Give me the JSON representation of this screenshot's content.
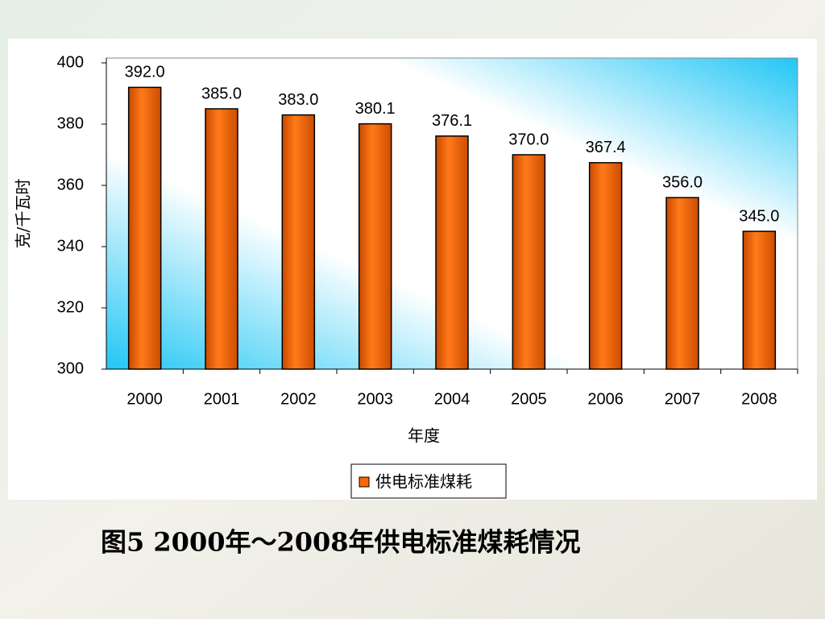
{
  "chart_data": {
    "type": "bar",
    "title": "图5   2000年～2008年供电标准煤耗情况",
    "x_label": "年度",
    "y_label": "克/千瓦时",
    "categories": [
      "2000",
      "2001",
      "2002",
      "2003",
      "2004",
      "2005",
      "2006",
      "2007",
      "2008"
    ],
    "series": [
      {
        "name": "供电标准煤耗",
        "color": "#ff6600",
        "values": [
          392.0,
          385.0,
          383.0,
          380.1,
          376.1,
          370.0,
          367.4,
          356.0,
          345.0
        ],
        "value_labels": [
          "392.0",
          "385.0",
          "383.0",
          "380.1",
          "376.1",
          "370.0",
          "367.4",
          "356.0",
          "345.0"
        ]
      }
    ],
    "ylim": [
      300,
      400
    ],
    "yticks": [
      300,
      320,
      340,
      360,
      380,
      400
    ],
    "grid": false
  }
}
